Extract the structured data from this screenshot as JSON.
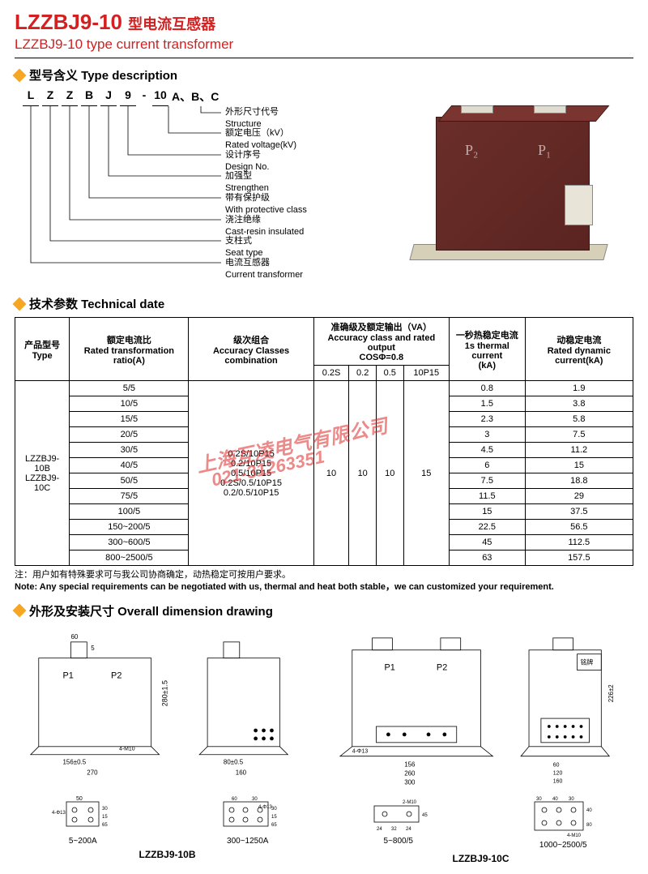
{
  "title": {
    "model": "LZZBJ9-10",
    "suffix_cn": "型电流互感器",
    "en": "LZZBJ9-10  type current transformer"
  },
  "sections": {
    "type_desc": "型号含义 Type description",
    "tech": "技术参数 Technical date",
    "dim": "外形及安装尺寸 Overall dimension drawing"
  },
  "code": {
    "letters": [
      "L",
      "Z",
      "Z",
      "B",
      "J",
      "9",
      "-",
      "10",
      "A、B、C"
    ]
  },
  "desc_labels": [
    {
      "cn": "外形尺寸代号",
      "en": "Structure"
    },
    {
      "cn": "额定电压（kV）",
      "en": "Rated voltage(kV)"
    },
    {
      "cn": "设计序号",
      "en": "Design No."
    },
    {
      "cn": "加强型",
      "en": "Strengthen"
    },
    {
      "cn": "带有保护级",
      "en": "With protective class"
    },
    {
      "cn": "浇注绝缘",
      "en": "Cast-resin insulated"
    },
    {
      "cn": "支柱式",
      "en": "Seat type"
    },
    {
      "cn": "电流互感器",
      "en": "Current transformer"
    }
  ],
  "product_labels": {
    "p1": "P₁",
    "p2": "P₂"
  },
  "table": {
    "headers": {
      "type": {
        "cn": "产品型号",
        "en": "Type"
      },
      "ratio": {
        "cn": "额定电流比",
        "en": "Rated transformation ratio(A)"
      },
      "accuracy": {
        "cn": "级次组合",
        "en": "Accuracy Classes combination"
      },
      "output": {
        "cn": "准确级及额定输出（VA）",
        "en": "Accuracy class and rated output",
        "cos": "COSΦ=0.8"
      },
      "thermal": {
        "cn": "一秒热稳定电流",
        "en": "1s thermal current",
        "unit": "(kA)"
      },
      "dynamic": {
        "cn": "动稳定电流",
        "en": "Rated dynamic current(kA)"
      }
    },
    "sub_headers": [
      "0.2S",
      "0.2",
      "0.5",
      "10P15"
    ],
    "type_val": "LZZBJ9-10B\nLZZBJ9-10C",
    "accuracy_vals": [
      "0.2S/10P15",
      "0.2/10P15",
      "0.5/10P15",
      "0.2S/0.5/10P15",
      "0.2/0.5/10P15"
    ],
    "output_vals": {
      "c1": "10",
      "c2": "10",
      "c3": "10",
      "c4": "15"
    },
    "rows": [
      {
        "ratio": "5/5",
        "th": "0.8",
        "dy": "1.9"
      },
      {
        "ratio": "10/5",
        "th": "1.5",
        "dy": "3.8"
      },
      {
        "ratio": "15/5",
        "th": "2.3",
        "dy": "5.8"
      },
      {
        "ratio": "20/5",
        "th": "3",
        "dy": "7.5"
      },
      {
        "ratio": "30/5",
        "th": "4.5",
        "dy": "11.2"
      },
      {
        "ratio": "40/5",
        "th": "6",
        "dy": "15"
      },
      {
        "ratio": "50/5",
        "th": "7.5",
        "dy": "18.8"
      },
      {
        "ratio": "75/5",
        "th": "11.5",
        "dy": "29"
      },
      {
        "ratio": "100/5",
        "th": "15",
        "dy": "37.5"
      },
      {
        "ratio": "150~200/5",
        "th": "22.5",
        "dy": "56.5"
      },
      {
        "ratio": "300~600/5",
        "th": "45",
        "dy": "112.5"
      },
      {
        "ratio": "800~2500/5",
        "th": "63",
        "dy": "157.5"
      }
    ]
  },
  "note": {
    "cn": "注：用户如有特殊要求可与我公司协商确定，动热稳定可按用户要求。",
    "en": "Note: Any special requirements can be negotiated with us, thermal and heat both stable，we can customized your requirement."
  },
  "watermark": {
    "line1": "上海互凌电气有限公司",
    "line2": "021-31263351"
  },
  "dim": {
    "b_front": {
      "p1": "P1",
      "p2": "P2",
      "h": "280±1.5",
      "w1": "156±0.5",
      "w2": "270",
      "top1": "60",
      "top2": "5",
      "hole": "4-M10"
    },
    "b_side": {
      "w": "80±0.5",
      "wtot": "160"
    },
    "c_front": {
      "p1": "P1",
      "p2": "P2",
      "w1": "156",
      "w2": "260",
      "w3": "300",
      "hole": "4-Φ13"
    },
    "c_side": {
      "h": "226±2",
      "w1": "60",
      "w2": "120",
      "w3": "160",
      "label": "铭牌"
    },
    "mount_b1": {
      "range": "5~200A",
      "w": "50",
      "h1": "30",
      "h2": "65",
      "h3": "15",
      "hole": "4-Φ13"
    },
    "mount_b2": {
      "range": "300~1250A",
      "w1": "60",
      "w2": "30",
      "h1": "30",
      "h2": "65",
      "h3": "15",
      "hole": "4-Φ13"
    },
    "mount_c1": {
      "range": "5~800/5",
      "w1": "24",
      "w2": "32",
      "w3": "24",
      "h": "45",
      "hole": "2-M10"
    },
    "mount_c2": {
      "range": "1000~2500/5",
      "w1": "30",
      "w2": "40",
      "w3": "30",
      "h1": "40",
      "h2": "80",
      "hole": "4-M10"
    },
    "label_b": "LZZBJ9-10B",
    "label_c": "LZZBJ9-10C"
  }
}
